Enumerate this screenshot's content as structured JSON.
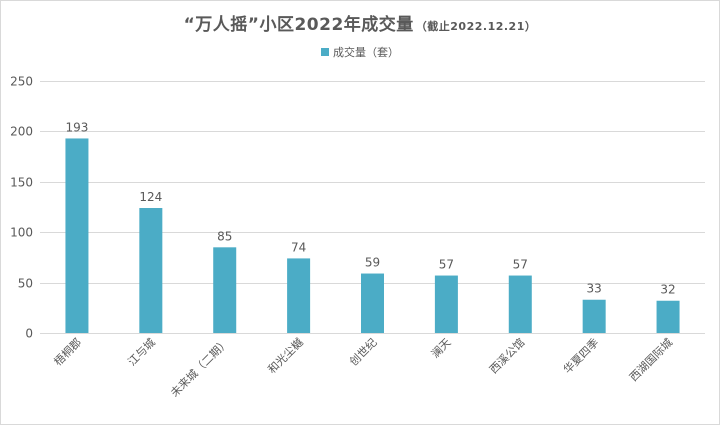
{
  "chart": {
    "title_main": "“万人摇”小区2022年成交量",
    "title_sub": "（截止2022.12.21）",
    "legend_label": "成交量（套）"
  },
  "colors": {
    "bar": "#4bacc6",
    "grid": "#d9d9d9",
    "text": "#595959"
  },
  "chart_data": {
    "type": "bar",
    "title": "“万人摇”小区2022年成交量（截止2022.12.21）",
    "categories": [
      "梧桐郡",
      "江与城",
      "未来城（二期）",
      "和光尘樾",
      "创世纪",
      "澜天",
      "西溪公馆",
      "华夏四季",
      "西湖国际城"
    ],
    "series": [
      {
        "name": "成交量（套）",
        "values": [
          193,
          124,
          85,
          74,
          59,
          57,
          57,
          33,
          32
        ]
      }
    ],
    "yticks": [
      0,
      50,
      100,
      150,
      200,
      250
    ],
    "ylim": [
      0,
      250
    ],
    "grid": true,
    "legend_position": "top"
  }
}
